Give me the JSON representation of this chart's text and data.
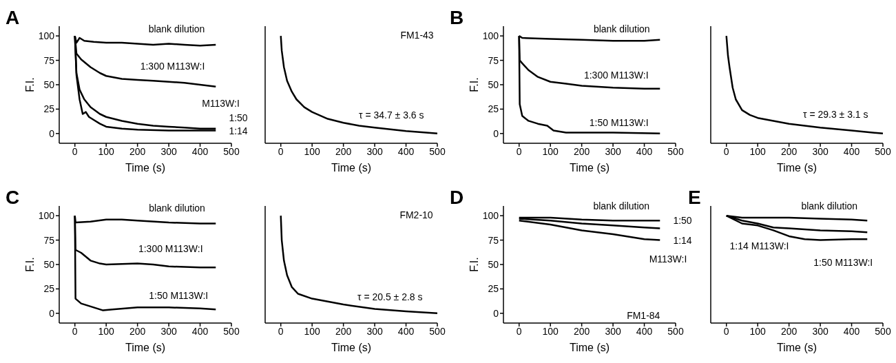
{
  "chart_data": [
    {
      "type": "line",
      "title": "A",
      "xlabel": "Time (s)",
      "ylabel": "F.I.",
      "xlim": [
        -50,
        500
      ],
      "ylim": [
        -10,
        110
      ],
      "xticks": [
        0,
        100,
        200,
        300,
        400,
        500
      ],
      "yticks": [
        0,
        25,
        50,
        75,
        100
      ],
      "marker": "none",
      "line_style": "solid",
      "series": [
        {
          "color": "#000000",
          "x": [
            0,
            5,
            15,
            30,
            60,
            100,
            150,
            200,
            250,
            300,
            350,
            400,
            450
          ],
          "values": [
            100,
            93,
            98,
            95,
            94,
            93,
            93,
            92,
            91,
            92,
            91,
            90,
            91
          ]
        },
        {
          "color": "#000000",
          "x": [
            0,
            5,
            20,
            50,
            80,
            100,
            150,
            200,
            250,
            300,
            350,
            400,
            450
          ],
          "values": [
            100,
            82,
            76,
            68,
            62,
            59,
            56,
            55,
            54,
            53,
            52,
            50,
            48
          ]
        },
        {
          "color": "#000000",
          "x": [
            0,
            5,
            15,
            30,
            50,
            80,
            100,
            150,
            200,
            250,
            300,
            350,
            400,
            450
          ],
          "values": [
            100,
            62,
            45,
            35,
            27,
            20,
            17,
            13,
            10,
            8,
            7,
            6,
            5,
            5
          ]
        },
        {
          "color": "#000000",
          "x": [
            0,
            5,
            15,
            25,
            35,
            45,
            60,
            80,
            100,
            150,
            200,
            300,
            400,
            450
          ],
          "values": [
            100,
            60,
            35,
            20,
            22,
            17,
            14,
            10,
            7,
            5,
            4,
            3,
            3,
            3
          ]
        }
      ],
      "annotations": [
        "blank dilution",
        "1:300 M113W:I",
        "M113W:I",
        "1:50",
        "1:14"
      ]
    },
    {
      "type": "line",
      "xlabel": "Time (s)",
      "xlim": [
        -50,
        500
      ],
      "ylim": [
        -10,
        110
      ],
      "xticks": [
        0,
        100,
        200,
        300,
        400,
        500
      ],
      "yticks": [
        0,
        25,
        50,
        75,
        100
      ],
      "tick_labels": "x",
      "marker": "none",
      "line_style": "solid",
      "series": [
        {
          "color": "#000000",
          "x": [
            0,
            3,
            10,
            20,
            35,
            50,
            75,
            100,
            150,
            200,
            250,
            300,
            400,
            500
          ],
          "values": [
            100,
            85,
            68,
            54,
            43,
            35,
            27,
            22,
            15,
            11,
            8,
            6,
            2.5,
            0
          ]
        }
      ],
      "annotations": [
        "FM1-43",
        "τ = 34.7 ± 3.6 s"
      ]
    },
    {
      "type": "line",
      "title": "B",
      "xlabel": "Time (s)",
      "ylabel": "F.I.",
      "xlim": [
        -50,
        500
      ],
      "ylim": [
        -10,
        110
      ],
      "xticks": [
        0,
        100,
        200,
        300,
        400,
        500
      ],
      "yticks": [
        0,
        25,
        50,
        75,
        100
      ],
      "marker": "none",
      "line_style": "solid",
      "series": [
        {
          "color": "#000000",
          "x": [
            0,
            10,
            100,
            200,
            300,
            400,
            450
          ],
          "values": [
            100,
            98,
            97,
            96,
            95,
            95,
            96
          ]
        },
        {
          "color": "#000000",
          "x": [
            0,
            2,
            10,
            30,
            60,
            100,
            150,
            200,
            300,
            400,
            450
          ],
          "values": [
            100,
            75,
            72,
            65,
            58,
            53,
            51,
            49,
            47,
            46,
            46
          ]
        },
        {
          "color": "#000000",
          "x": [
            0,
            2,
            10,
            30,
            60,
            90,
            110,
            150,
            200,
            300,
            450
          ],
          "values": [
            100,
            30,
            18,
            13,
            10,
            8,
            3,
            1,
            1,
            1,
            0
          ]
        }
      ],
      "annotations": [
        "blank dilution",
        "1:300 M113W:I",
        "1:50 M113W:I"
      ]
    },
    {
      "type": "line",
      "xlabel": "Time (s)",
      "xlim": [
        -50,
        500
      ],
      "ylim": [
        -10,
        110
      ],
      "xticks": [
        0,
        100,
        200,
        300,
        400,
        500
      ],
      "yticks": [
        0,
        25,
        50,
        75,
        100
      ],
      "tick_labels": "x",
      "marker": "none",
      "line_style": "solid",
      "series": [
        {
          "color": "#000000",
          "x": [
            0,
            5,
            10,
            20,
            30,
            50,
            75,
            100,
            150,
            200,
            300,
            400,
            500
          ],
          "values": [
            100,
            80,
            68,
            47,
            35,
            24,
            19,
            16,
            13,
            10,
            6,
            3,
            0
          ]
        }
      ],
      "annotations": [
        "τ = 29.3 ± 3.1 s"
      ]
    },
    {
      "type": "line",
      "title": "C",
      "xlabel": "Time (s)",
      "ylabel": "F.I.",
      "xlim": [
        -50,
        500
      ],
      "ylim": [
        -10,
        110
      ],
      "xticks": [
        0,
        100,
        200,
        300,
        400,
        500
      ],
      "yticks": [
        0,
        25,
        50,
        75,
        100
      ],
      "marker": "none",
      "line_style": "solid",
      "series": [
        {
          "color": "#000000",
          "x": [
            0,
            2,
            50,
            100,
            150,
            200,
            300,
            400,
            450
          ],
          "values": [
            100,
            93,
            94,
            96,
            96,
            95,
            93,
            92,
            92
          ]
        },
        {
          "color": "#000000",
          "x": [
            0,
            2,
            20,
            50,
            80,
            100,
            200,
            250,
            300,
            400,
            450
          ],
          "values": [
            100,
            65,
            62,
            54,
            51,
            50,
            51,
            50,
            48,
            47,
            47
          ]
        },
        {
          "color": "#000000",
          "x": [
            0,
            2,
            20,
            50,
            90,
            120,
            200,
            300,
            400,
            450
          ],
          "values": [
            100,
            15,
            10,
            7,
            3,
            4,
            6,
            6,
            5,
            4
          ]
        }
      ],
      "annotations": [
        "blank dilution",
        "1:300 M113W:I",
        "1:50 M113W:I"
      ]
    },
    {
      "type": "line",
      "xlabel": "Time (s)",
      "xlim": [
        -50,
        500
      ],
      "ylim": [
        -10,
        110
      ],
      "xticks": [
        0,
        100,
        200,
        300,
        400,
        500
      ],
      "yticks": [
        0,
        25,
        50,
        75,
        100
      ],
      "tick_labels": "x",
      "marker": "none",
      "line_style": "solid",
      "series": [
        {
          "color": "#000000",
          "x": [
            0,
            3,
            10,
            20,
            35,
            55,
            100,
            150,
            200,
            300,
            400,
            500
          ],
          "values": [
            100,
            75,
            54,
            39,
            27,
            20,
            15,
            12,
            9,
            4.5,
            2,
            0
          ]
        }
      ],
      "annotations": [
        "FM2-10",
        "τ = 20.5 ± 2.8 s"
      ]
    },
    {
      "type": "line",
      "title": "D",
      "xlabel": "Time (s)",
      "ylabel": "F.I.",
      "xlim": [
        -50,
        500
      ],
      "ylim": [
        -10,
        110
      ],
      "xticks": [
        0,
        100,
        200,
        300,
        400,
        500
      ],
      "yticks": [
        0,
        25,
        50,
        75,
        100
      ],
      "marker": "none",
      "line_style": "solid",
      "series": [
        {
          "color": "#000000",
          "x": [
            0,
            100,
            200,
            300,
            400,
            450
          ],
          "values": [
            98,
            98,
            96,
            95,
            95,
            95
          ]
        },
        {
          "color": "#000000",
          "x": [
            0,
            100,
            200,
            300,
            400,
            450
          ],
          "values": [
            97,
            95,
            92,
            90,
            88,
            87
          ]
        },
        {
          "color": "#000000",
          "x": [
            0,
            100,
            200,
            300,
            400,
            450
          ],
          "values": [
            95,
            91,
            85,
            81,
            76,
            75
          ]
        }
      ],
      "annotations": [
        "blank dilution",
        "1:50",
        "1:14",
        "M113W:I",
        "FM1-84"
      ]
    },
    {
      "type": "line",
      "title": "E",
      "xlabel": "Time (s)",
      "xlim": [
        -50,
        500
      ],
      "ylim": [
        -10,
        110
      ],
      "xticks": [
        0,
        100,
        200,
        300,
        400,
        500
      ],
      "yticks": [
        0,
        25,
        50,
        75,
        100
      ],
      "tick_labels": "x",
      "marker": "none",
      "line_style": "solid",
      "series": [
        {
          "color": "#000000",
          "x": [
            0,
            50,
            100,
            200,
            300,
            400,
            450
          ],
          "values": [
            100,
            98,
            98,
            98,
            97,
            96,
            95
          ]
        },
        {
          "color": "#000000",
          "x": [
            0,
            50,
            100,
            150,
            200,
            300,
            400,
            450
          ],
          "values": [
            100,
            95,
            92,
            88,
            87,
            85,
            84,
            83
          ]
        },
        {
          "color": "#000000",
          "x": [
            0,
            50,
            100,
            150,
            200,
            250,
            300,
            400,
            450
          ],
          "values": [
            100,
            92,
            90,
            85,
            79,
            76,
            75,
            76,
            76
          ]
        }
      ],
      "annotations": [
        "blank dilution",
        "1:14 M113W:I",
        "1:50 M113W:I"
      ]
    }
  ]
}
